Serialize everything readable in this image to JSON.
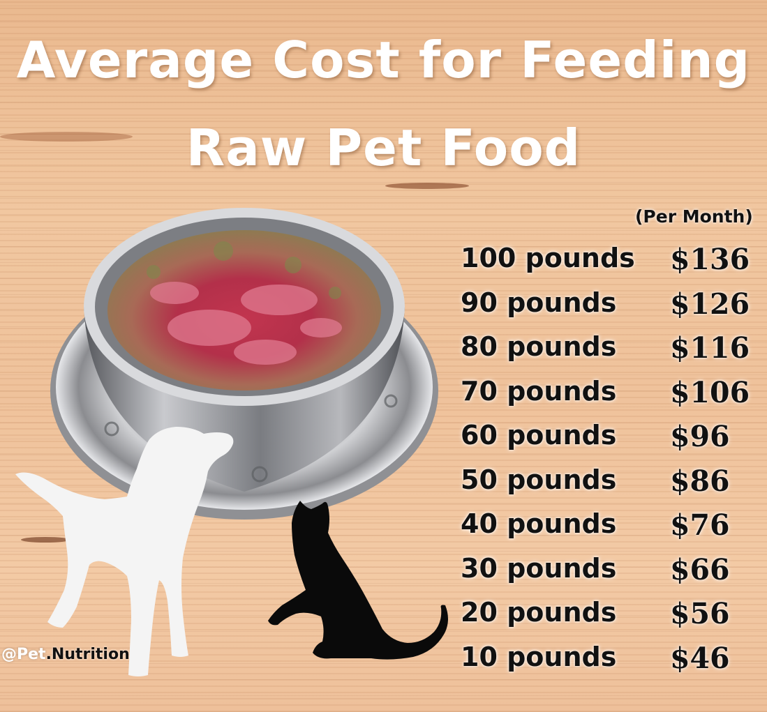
{
  "title": {
    "line1": "Average Cost for Feeding",
    "line2": "Raw Pet Food"
  },
  "subtitle": "(Per Month)",
  "rows": [
    {
      "weight": "100 pounds",
      "cost": "$136"
    },
    {
      "weight": "90 pounds",
      "cost": "$126"
    },
    {
      "weight": "80 pounds",
      "cost": "$116"
    },
    {
      "weight": "70 pounds",
      "cost": "$106"
    },
    {
      "weight": "60 pounds",
      "cost": "$96"
    },
    {
      "weight": "50 pounds",
      "cost": "$86"
    },
    {
      "weight": "40 pounds",
      "cost": "$76"
    },
    {
      "weight": "30 pounds",
      "cost": "$66"
    },
    {
      "weight": "20 pounds",
      "cost": "$56"
    },
    {
      "weight": "10 pounds",
      "cost": "$46"
    }
  ],
  "watermark": {
    "prefix": "@Pet",
    "suffix": ".Nutrition"
  },
  "illustrations": {
    "bowl": "steel-bowl-raw-meat",
    "dog": "dog-silhouette-icon",
    "cat": "cat-silhouette-icon",
    "dog_color": "#f4f4f4",
    "cat_color": "#0a0a0a"
  }
}
